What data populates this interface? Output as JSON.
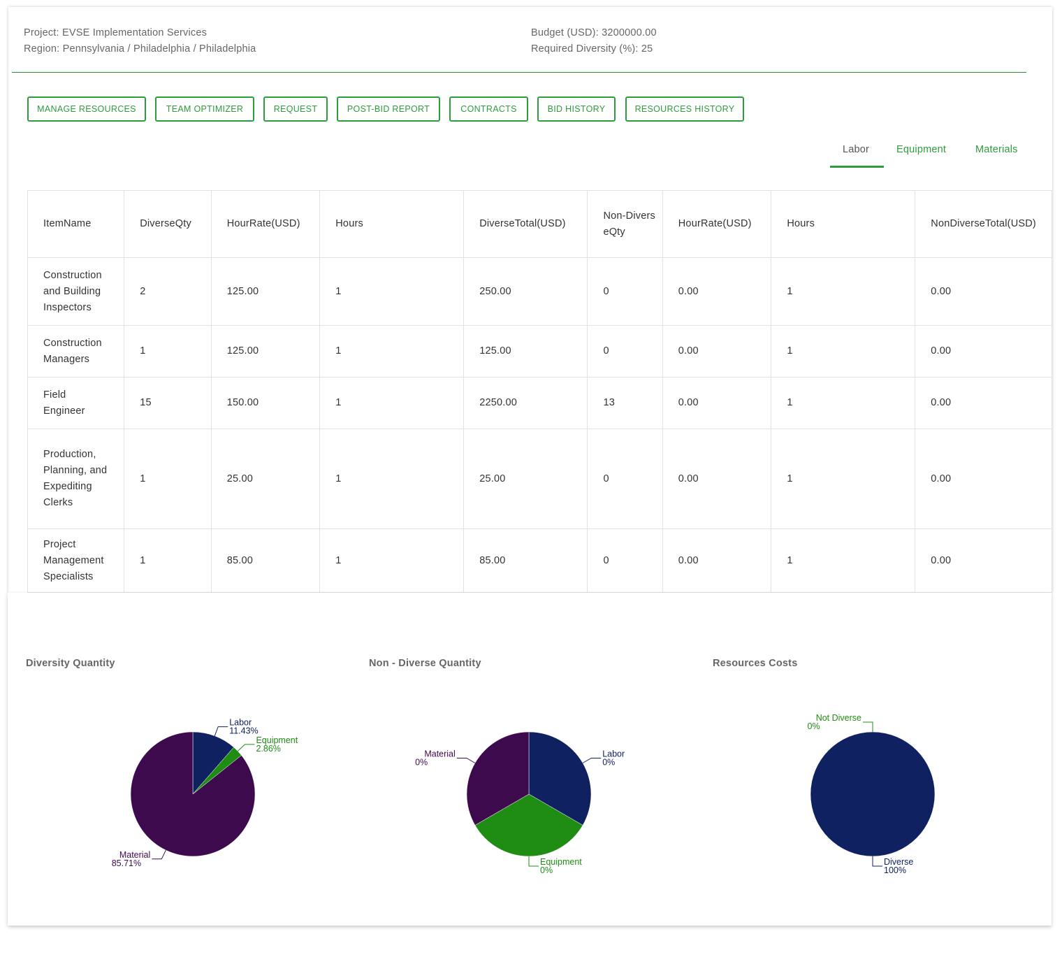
{
  "header": {
    "project": "Project: EVSE Implementation Services",
    "region": "Region: Pennsylvania / Philadelphia / Philadelphia",
    "budget": "Budget (USD): 3200000.00",
    "diversity": "Required Diversity (%): 25"
  },
  "toolbar": {
    "manage_resources": "MANAGE RESOURCES",
    "team_optimizer": "TEAM OPTIMIZER",
    "request": "REQUEST",
    "post_bid_report": "POST-BID REPORT",
    "contracts": "CONTRACTS",
    "bid_history": "BID HISTORY",
    "resources_history": "RESOURCES HISTORY"
  },
  "tabs": {
    "labor": "Labor",
    "equipment": "Equipment",
    "materials": "Materials",
    "active": "Labor"
  },
  "table": {
    "columns": [
      "ItemName",
      "DiverseQty",
      "HourRate(USD)",
      "Hours",
      "DiverseTotal(USD)",
      "Non-DiverseQty",
      "HourRate(USD)",
      "Hours",
      "NonDiverseTotal(USD)"
    ],
    "rows": [
      [
        "Construction and Building Inspectors",
        "2",
        "125.00",
        "1",
        "250.00",
        "0",
        "0.00",
        "1",
        "0.00"
      ],
      [
        "Construction Managers",
        "1",
        "125.00",
        "1",
        "125.00",
        "0",
        "0.00",
        "1",
        "0.00"
      ],
      [
        "Field Engineer",
        "15",
        "150.00",
        "1",
        "2250.00",
        "13",
        "0.00",
        "1",
        "0.00"
      ],
      [
        "Production, Planning, and Expediting Clerks",
        "1",
        "25.00",
        "1",
        "25.00",
        "0",
        "0.00",
        "1",
        "0.00"
      ],
      [
        "Project Management Specialists",
        "1",
        "85.00",
        "1",
        "85.00",
        "0",
        "0.00",
        "1",
        "0.00"
      ]
    ]
  },
  "colors": {
    "accent": "#2e9b3c",
    "labor": "#0f2160",
    "equipment": "#1f8c14",
    "material": "#3e0a4e"
  },
  "chart_data": [
    {
      "type": "pie",
      "title": "Diversity Quantity",
      "slices": [
        {
          "name": "Labor",
          "value": 11.43,
          "label": "11.43%",
          "color": "#0f2160"
        },
        {
          "name": "Equipment",
          "value": 2.86,
          "label": "2.86%",
          "color": "#1f8c14"
        },
        {
          "name": "Material",
          "value": 85.71,
          "label": "85.71%",
          "color": "#3e0a4e"
        }
      ]
    },
    {
      "type": "pie",
      "title": "Non - Diverse Quantity",
      "slices": [
        {
          "name": "Labor",
          "value": 0,
          "label": "0%",
          "color": "#0f2160"
        },
        {
          "name": "Equipment",
          "value": 0,
          "label": "0%",
          "color": "#1f8c14"
        },
        {
          "name": "Material",
          "value": 0,
          "label": "0%",
          "color": "#3e0a4e"
        }
      ]
    },
    {
      "type": "pie",
      "title": "Resources Costs",
      "slices": [
        {
          "name": "Diverse",
          "value": 100,
          "label": "100%",
          "color": "#0f2160"
        },
        {
          "name": "Not Diverse",
          "value": 0,
          "label": "0%",
          "color": "#1f8c14"
        }
      ]
    }
  ]
}
